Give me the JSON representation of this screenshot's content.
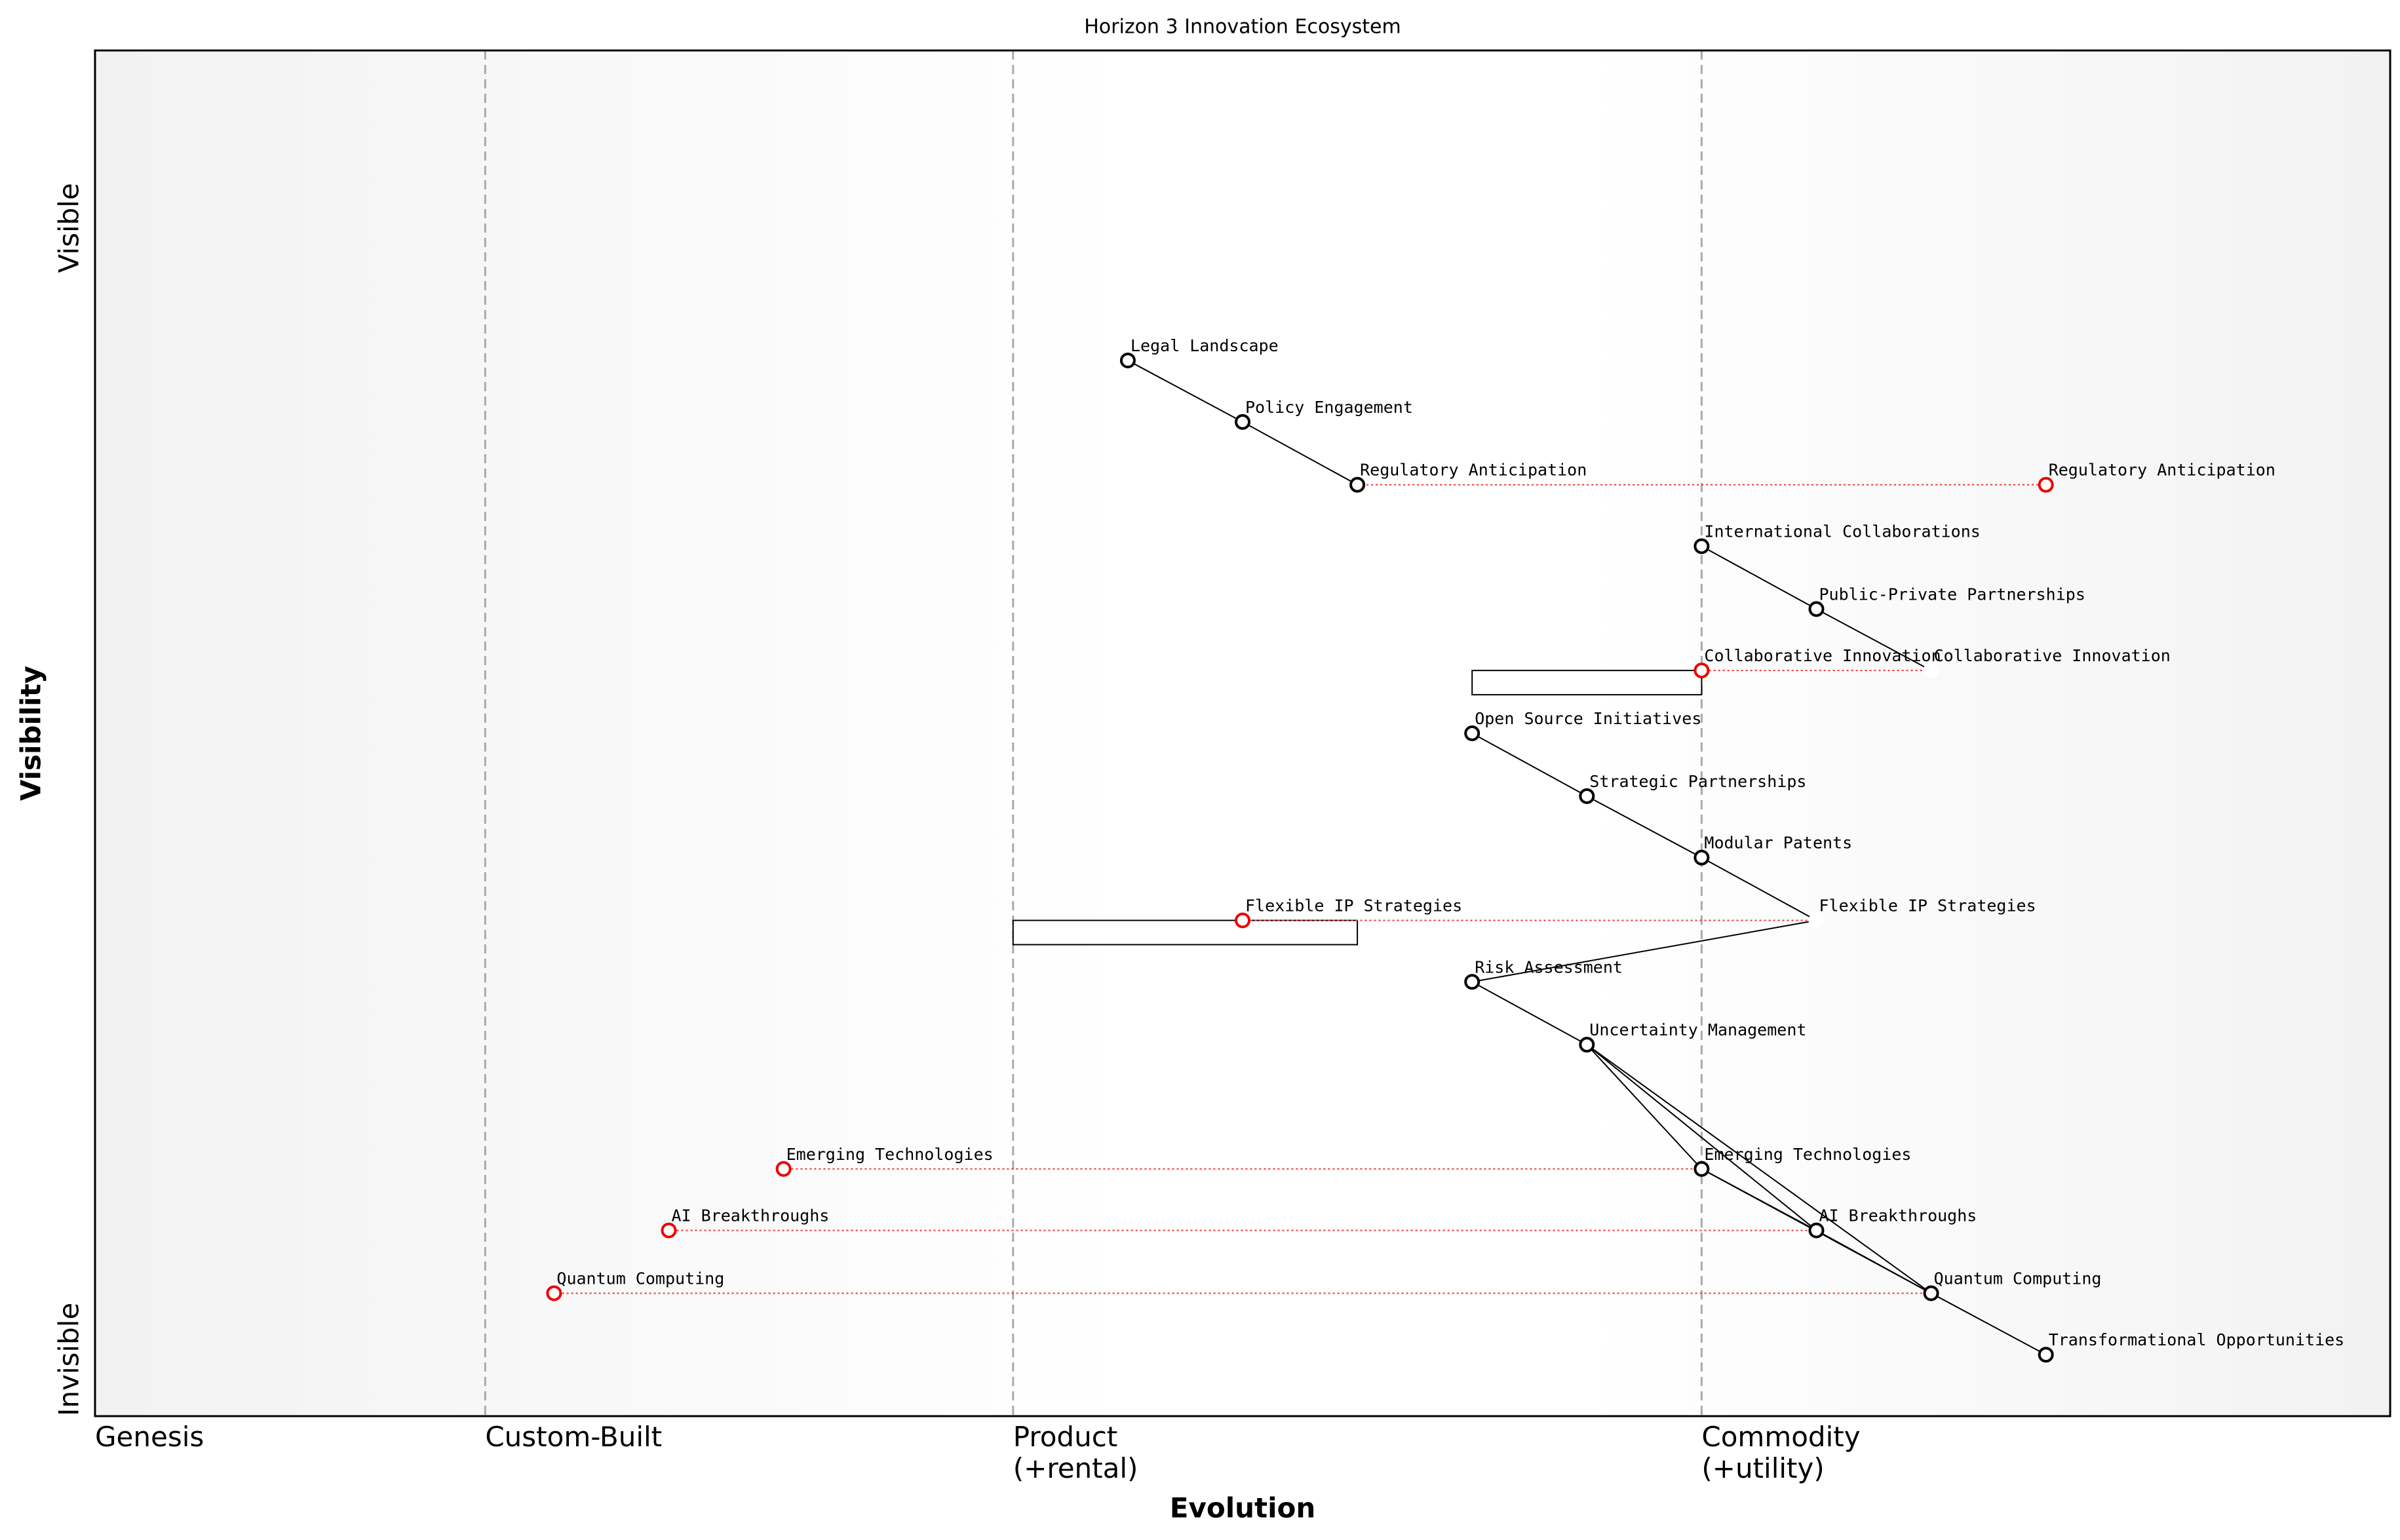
{
  "chart_data": {
    "type": "wardley",
    "title": "Horizon 3 Innovation Ecosystem",
    "xlabel": "Evolution",
    "ylabel": "Visibility",
    "y_end_labels": [
      "Invisible",
      "Visible"
    ],
    "xlim": [
      0,
      1
    ],
    "ylim": [
      0,
      1
    ],
    "stages": [
      {
        "value": 0,
        "label": "Genesis"
      },
      {
        "value": 0.17,
        "label": "Custom-Built"
      },
      {
        "value": 0.4,
        "label": "Product\n(+rental)"
      },
      {
        "value": 0.7,
        "label": "Commodity\n(+utility)"
      }
    ],
    "components": [
      {
        "name": "Legal Landscape",
        "x": 0.45,
        "y": 0.773
      },
      {
        "name": "Policy Engagement",
        "x": 0.5,
        "y": 0.728
      },
      {
        "name": "Regulatory Anticipation",
        "x": 0.55,
        "y": 0.682
      },
      {
        "name": "International Collaborations",
        "x": 0.7,
        "y": 0.637
      },
      {
        "name": "Public-Private Partnerships",
        "x": 0.75,
        "y": 0.591
      },
      {
        "name": "Collaborative Innovation",
        "x": 0.8,
        "y": 0.546,
        "visible": false
      },
      {
        "name": "Open Source Initiatives",
        "x": 0.6,
        "y": 0.5
      },
      {
        "name": "Strategic Partnerships",
        "x": 0.65,
        "y": 0.454
      },
      {
        "name": "Modular Patents",
        "x": 0.7,
        "y": 0.409
      },
      {
        "name": "Flexible IP Strategies",
        "x": 0.75,
        "y": 0.363,
        "visible": false
      },
      {
        "name": "Risk Assessment",
        "x": 0.6,
        "y": 0.318
      },
      {
        "name": "Uncertainty Management",
        "x": 0.65,
        "y": 0.272
      },
      {
        "name": "Emerging Technologies",
        "x": 0.7,
        "y": 0.181
      },
      {
        "name": "AI Breakthroughs",
        "x": 0.75,
        "y": 0.136
      },
      {
        "name": "Quantum Computing",
        "x": 0.8,
        "y": 0.09
      },
      {
        "name": "Transformational Opportunities",
        "x": 0.85,
        "y": 0.045
      }
    ],
    "links": [
      [
        "Legal Landscape",
        "Policy Engagement"
      ],
      [
        "Policy Engagement",
        "Regulatory Anticipation"
      ],
      [
        "International Collaborations",
        "Public-Private Partnerships"
      ],
      [
        "Public-Private Partnerships",
        "Collaborative Innovation"
      ],
      [
        "Open Source Initiatives",
        "Strategic Partnerships"
      ],
      [
        "Strategic Partnerships",
        "Modular Patents"
      ],
      [
        "Modular Patents",
        "Flexible IP Strategies"
      ],
      [
        "Flexible IP Strategies",
        "Risk Assessment"
      ],
      [
        "Risk Assessment",
        "Uncertainty Management"
      ],
      [
        "Uncertainty Management",
        "Emerging Technologies"
      ],
      [
        "Uncertainty Management",
        "AI Breakthroughs"
      ],
      [
        "Uncertainty Management",
        "Quantum Computing"
      ],
      [
        "Emerging Technologies",
        "AI Breakthroughs"
      ],
      [
        "AI Breakthroughs",
        "Quantum Computing"
      ],
      [
        "Emerging Technologies",
        "Quantum Computing"
      ],
      [
        "Quantum Computing",
        "Transformational Opportunities"
      ]
    ],
    "evolved": [
      {
        "name": "Regulatory Anticipation",
        "x": 0.85
      },
      {
        "name": "Collaborative Innovation",
        "x": 0.7
      },
      {
        "name": "Flexible IP Strategies",
        "x": 0.5
      },
      {
        "name": "Emerging Technologies",
        "x": 0.3
      },
      {
        "name": "AI Breakthroughs",
        "x": 0.25
      },
      {
        "name": "Quantum Computing",
        "x": 0.2
      }
    ],
    "pipelines": [
      {
        "component": "Collaborative Innovation",
        "x": [
          0.6,
          0.7
        ]
      },
      {
        "component": "Flexible IP Strategies",
        "x": [
          0.4,
          0.55
        ]
      }
    ]
  }
}
